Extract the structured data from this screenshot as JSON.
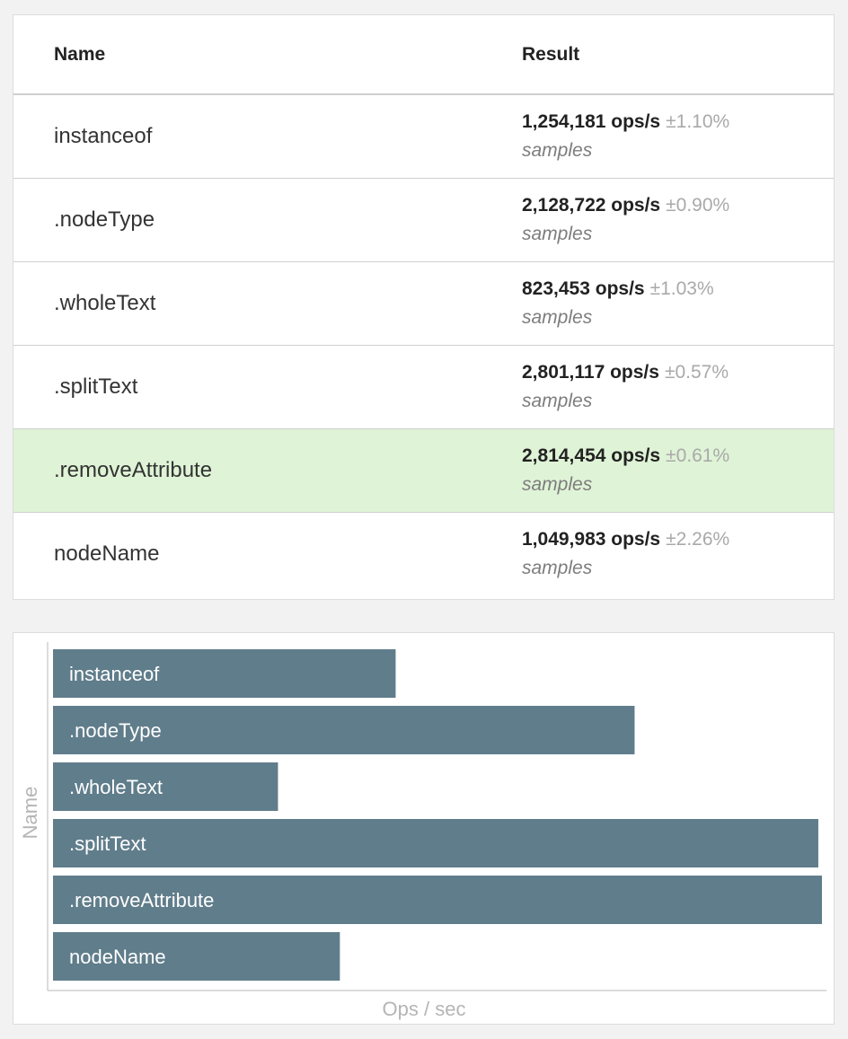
{
  "table": {
    "headers": {
      "name": "Name",
      "result": "Result"
    },
    "rows": [
      {
        "name": "instanceof",
        "ops": "1,254,181 ops/s",
        "rme": "±1.10%",
        "samples": "samples",
        "fastest": false
      },
      {
        "name": ".nodeType",
        "ops": "2,128,722 ops/s",
        "rme": "±0.90%",
        "samples": "samples",
        "fastest": false
      },
      {
        "name": ".wholeText",
        "ops": "823,453 ops/s",
        "rme": "±1.03%",
        "samples": "samples",
        "fastest": false
      },
      {
        "name": ".splitText",
        "ops": "2,801,117 ops/s",
        "rme": "±0.57%",
        "samples": "samples",
        "fastest": false
      },
      {
        "name": ".removeAttribute",
        "ops": "2,814,454 ops/s",
        "rme": "±0.61%",
        "samples": "samples",
        "fastest": true
      },
      {
        "name": "nodeName",
        "ops": "1,049,983 ops/s",
        "rme": "±2.26%",
        "samples": "samples",
        "fastest": false
      }
    ]
  },
  "colors": {
    "bar": "#607d8b",
    "fastest_row": "#dff3d6",
    "axis_title": "#b5b5b5"
  },
  "chart_data": {
    "type": "bar",
    "orientation": "horizontal",
    "categories": [
      "instanceof",
      ".nodeType",
      ".wholeText",
      ".splitText",
      ".removeAttribute",
      "nodeName"
    ],
    "values": [
      1254181,
      2128722,
      823453,
      2801117,
      2814454,
      1049983
    ],
    "xlabel": "Ops / sec",
    "ylabel": "Name",
    "xlim": [
      0,
      2814454
    ],
    "grid": false,
    "legend": "none"
  }
}
